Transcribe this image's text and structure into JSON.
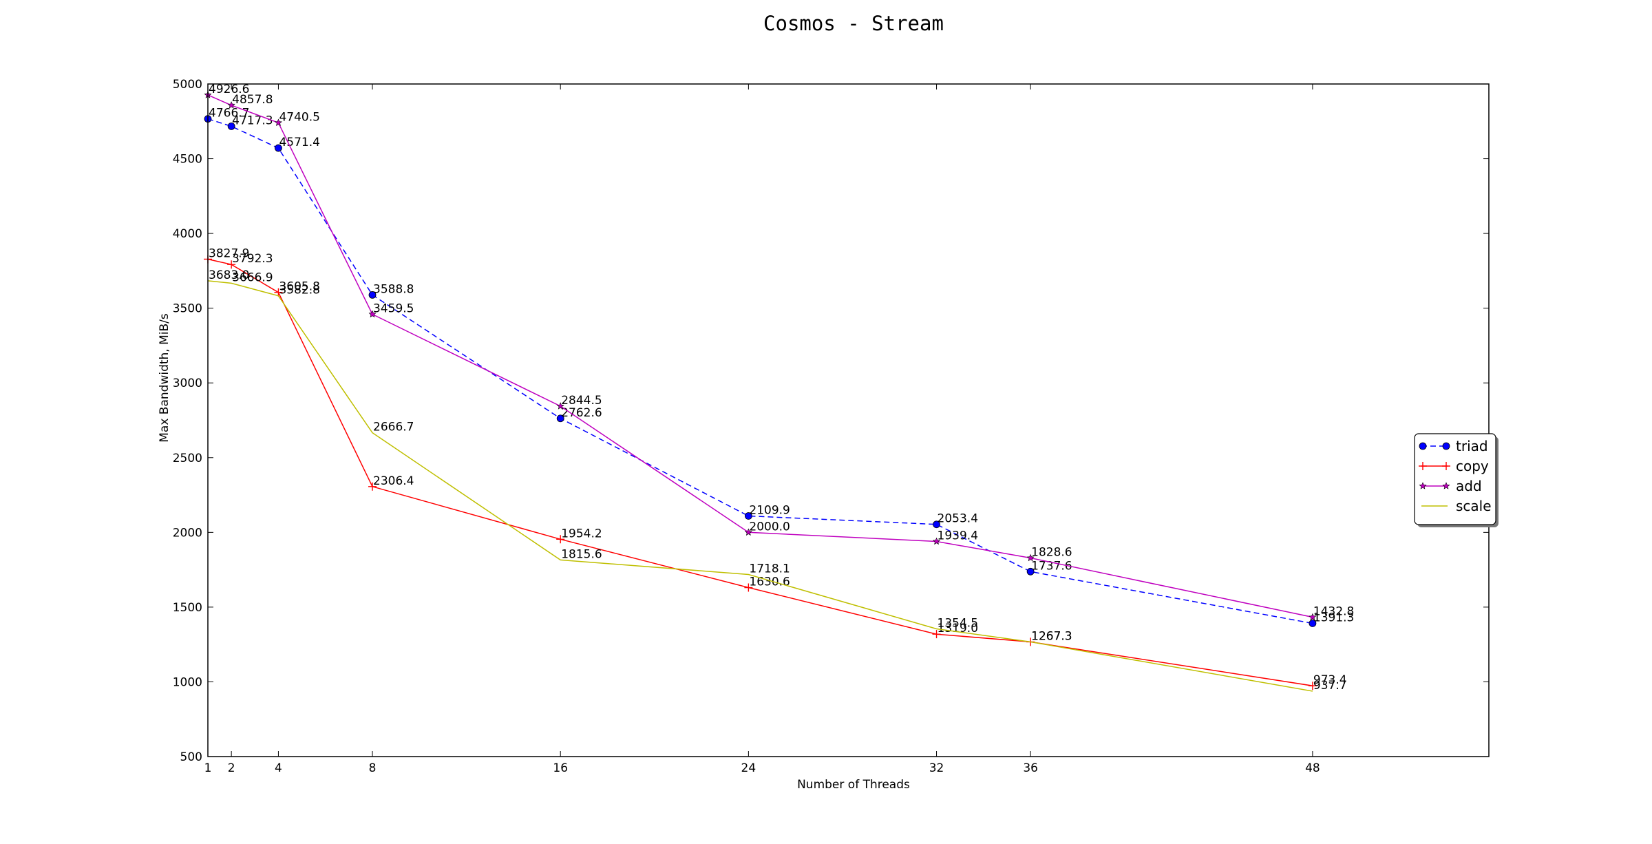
{
  "chart_data": {
    "type": "line",
    "title": "Cosmos - Stream",
    "xlabel": "Number of Threads",
    "ylabel": "Max Bandwidth, MiB/s",
    "x": [
      1,
      2,
      4,
      8,
      16,
      24,
      32,
      36,
      48
    ],
    "xticks": [
      "1",
      "2",
      "4",
      "8",
      "16",
      "24",
      "32",
      "36",
      "48"
    ],
    "ylim": [
      500,
      5000
    ],
    "yticks": [
      "500",
      "1000",
      "1500",
      "2000",
      "2500",
      "3000",
      "3500",
      "4000",
      "4500",
      "5000"
    ],
    "grid": false,
    "legend_position": "center-right",
    "series": [
      {
        "name": "triad",
        "color": "#0000ff",
        "style": "dashed",
        "marker": "circle",
        "values": [
          4766.7,
          4717.3,
          4571.4,
          3588.8,
          2762.6,
          2109.9,
          2053.4,
          1737.6,
          1391.3
        ],
        "labels": [
          "4766.7",
          "4717.3",
          "4571.4",
          "3588.8",
          "2762.6",
          "2109.9",
          "2053.4",
          "1737.6",
          "1391.3"
        ]
      },
      {
        "name": "copy",
        "color": "#ff0000",
        "style": "solid",
        "marker": "plus",
        "values": [
          3827.9,
          3792.3,
          3605.8,
          2306.4,
          1954.2,
          1630.6,
          1319.0,
          1267.3,
          973.4
        ],
        "labels": [
          "3827.9",
          "3792.3",
          "3605.8",
          "2306.4",
          "1954.2",
          "1630.6",
          "1319.0",
          "1267.3",
          "973.4"
        ]
      },
      {
        "name": "add",
        "color": "#bf00bf",
        "style": "solid",
        "marker": "star",
        "values": [
          4926.6,
          4857.8,
          4740.5,
          3459.5,
          2844.5,
          2000.0,
          1939.4,
          1828.6,
          1432.8
        ],
        "labels": [
          "4926.6",
          "4857.8",
          "4740.5",
          "3459.5",
          "2844.5",
          "2000.0",
          "1939.4",
          "1828.6",
          "1432.8"
        ]
      },
      {
        "name": "scale",
        "color": "#bfbf00",
        "style": "solid",
        "marker": "none",
        "values": [
          3683.0,
          3666.9,
          3582.8,
          2666.7,
          1815.6,
          1718.1,
          1354.5,
          1267.3,
          937.7
        ],
        "labels": [
          "3683.0",
          "3666.9",
          "3582.8",
          "2666.7",
          "1815.6",
          "1718.1",
          "1354.5",
          "1267.3",
          "937.7"
        ]
      }
    ]
  }
}
